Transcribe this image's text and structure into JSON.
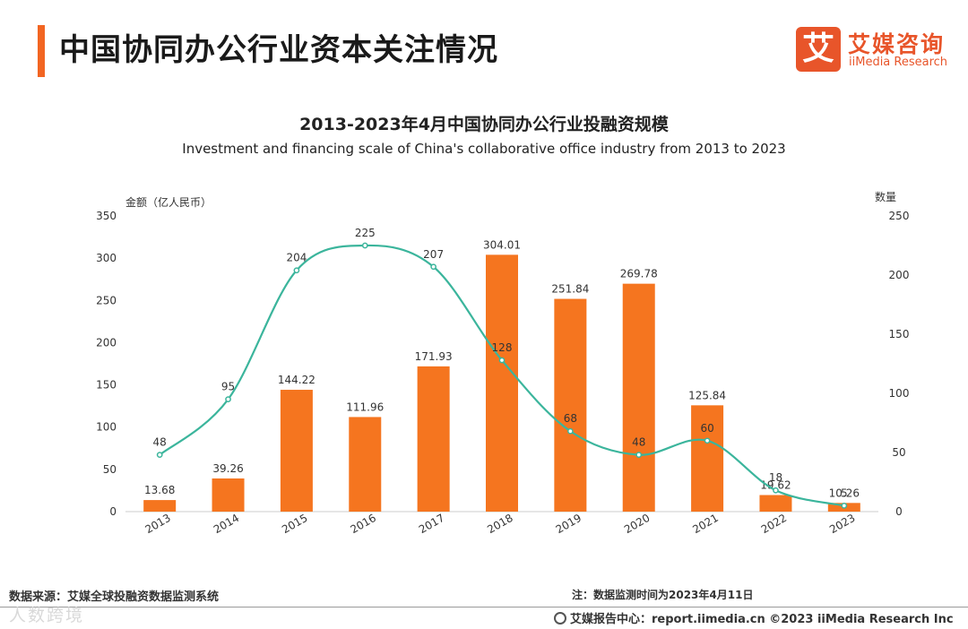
{
  "header": {
    "title": "中国协同办公行业资本关注情况"
  },
  "logo": {
    "mark": "艾",
    "cn": "艾媒咨询",
    "en": "iiMedia Research"
  },
  "colors": {
    "bar": "#f5751f",
    "line": "#3bb59c",
    "accent": "#f26522"
  },
  "chart_data": {
    "type": "bar",
    "title": "2013-2023年4月中国协同办公行业投融资规模",
    "subtitle": "Investment and financing scale of China's collaborative office industry from 2013 to 2023",
    "categories": [
      "2013",
      "2014",
      "2015",
      "2016",
      "2017",
      "2018",
      "2019",
      "2020",
      "2021",
      "2022",
      "2023"
    ],
    "series": [
      {
        "name": "金额（亿人民币）",
        "type": "bar",
        "axis": "left",
        "values": [
          13.68,
          39.26,
          144.22,
          111.96,
          171.93,
          304.01,
          251.84,
          269.78,
          125.84,
          19.62,
          10.26
        ],
        "labels": [
          "13.68",
          "39.26",
          "144.22",
          "111.96",
          "171.93",
          "304.01",
          "251.84",
          "269.78",
          "125.84",
          "19.62",
          "10.26"
        ]
      },
      {
        "name": "数量",
        "type": "line",
        "axis": "right",
        "values": [
          48,
          95,
          204,
          225,
          207,
          128,
          68,
          48,
          60,
          18,
          5
        ],
        "labels": [
          "48",
          "95",
          "204",
          "225",
          "207",
          "128",
          "68",
          "48",
          "60",
          "18",
          "5"
        ]
      }
    ],
    "ylabel": "金额（亿人民币）",
    "y2label": "数量",
    "ylim": [
      0,
      350
    ],
    "y2lim": [
      0,
      250
    ],
    "yticks": [
      "0",
      "50",
      "100",
      "150",
      "200",
      "250",
      "300",
      "350"
    ],
    "y2ticks": [
      "0",
      "50",
      "100",
      "150",
      "200",
      "250"
    ],
    "grid": false
  },
  "footer": {
    "source": "数据来源：艾媒全球投融资数据监测系统",
    "note": "注：数据监测时间为2023年4月11日",
    "watermark": "人数跨境",
    "credit": "艾媒报告中心：report.iimedia.cn ©2023 iiMedia Research Inc"
  }
}
